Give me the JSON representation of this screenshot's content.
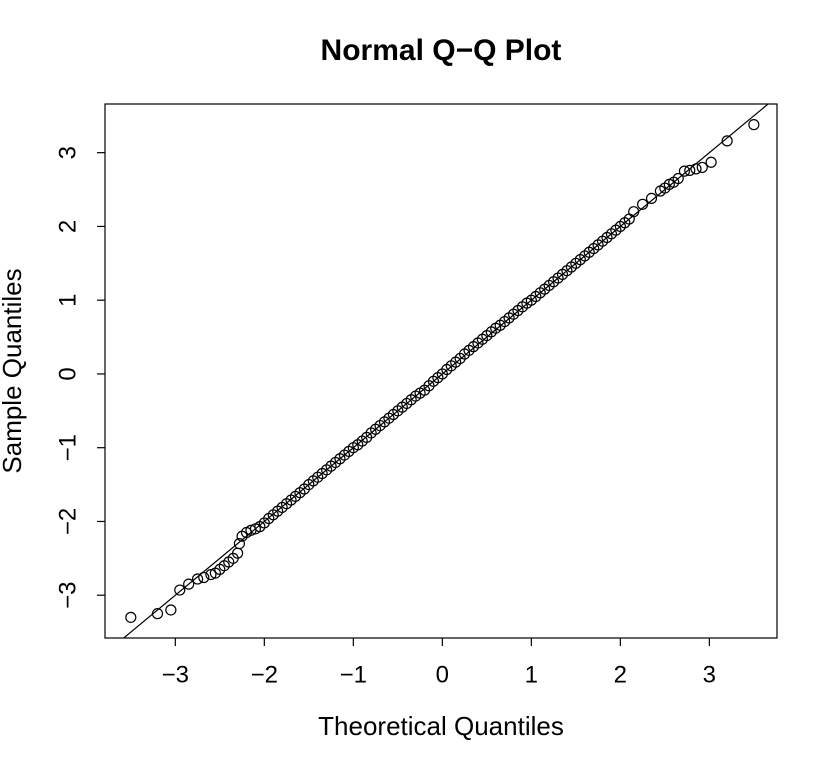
{
  "chart_data": {
    "type": "scatter",
    "title": "Normal Q−Q Plot",
    "x_label": "Theoretical Quantiles",
    "y_label": "Sample Quantiles",
    "xlim": [
      -3.79,
      3.76
    ],
    "ylim": [
      -3.58,
      3.66
    ],
    "xticks": [
      {
        "value": -3,
        "label": "−3"
      },
      {
        "value": -2,
        "label": "−2"
      },
      {
        "value": -1,
        "label": "−1"
      },
      0,
      1,
      2,
      3
    ],
    "yticks": [
      {
        "value": -3,
        "label": "−3"
      },
      {
        "value": -2,
        "label": "−2"
      },
      {
        "value": -1,
        "label": "−1"
      },
      0,
      1,
      2,
      3
    ],
    "color": "#000000",
    "qqline": {
      "intercept": 0,
      "slope": 1
    },
    "x": [
      -3.5,
      -3.2,
      -3.05,
      -2.95,
      -2.85,
      -2.75,
      -2.68,
      -2.6,
      -2.55,
      -2.5,
      -2.45,
      -2.4,
      -2.35,
      -2.3,
      -2.28,
      -2.25,
      -2.2,
      -2.15,
      -2.1,
      -2.05,
      -2,
      -1.95,
      -1.9,
      -1.85,
      -1.8,
      -1.75,
      -1.7,
      -1.65,
      -1.6,
      -1.55,
      -1.5,
      -1.45,
      -1.4,
      -1.35,
      -1.3,
      -1.25,
      -1.2,
      -1.15,
      -1.1,
      -1.05,
      -1,
      -0.95,
      -0.9,
      -0.85,
      -0.8,
      -0.75,
      -0.7,
      -0.65,
      -0.6,
      -0.55,
      -0.5,
      -0.45,
      -0.4,
      -0.35,
      -0.3,
      -0.25,
      -0.2,
      -0.15,
      -0.1,
      -0.05,
      0,
      0.05,
      0.1,
      0.15,
      0.2,
      0.25,
      0.3,
      0.35,
      0.4,
      0.45,
      0.5,
      0.55,
      0.6,
      0.65,
      0.7,
      0.75,
      0.8,
      0.85,
      0.9,
      0.95,
      1,
      1.05,
      1.1,
      1.15,
      1.2,
      1.25,
      1.3,
      1.35,
      1.4,
      1.45,
      1.5,
      1.55,
      1.6,
      1.65,
      1.7,
      1.75,
      1.8,
      1.85,
      1.9,
      1.95,
      2,
      2.05,
      2.1,
      2.15,
      2.25,
      2.35,
      2.45,
      2.5,
      2.55,
      2.6,
      2.65,
      2.72,
      2.78,
      2.85,
      2.92,
      3.02,
      3.2,
      3.5
    ],
    "values": [
      -3.3,
      -3.25,
      -3.2,
      -2.93,
      -2.85,
      -2.78,
      -2.76,
      -2.72,
      -2.7,
      -2.65,
      -2.6,
      -2.55,
      -2.5,
      -2.43,
      -2.3,
      -2.2,
      -2.15,
      -2.12,
      -2.1,
      -2.07,
      -2.02,
      -1.96,
      -1.91,
      -1.86,
      -1.81,
      -1.76,
      -1.71,
      -1.66,
      -1.61,
      -1.56,
      -1.5,
      -1.45,
      -1.4,
      -1.35,
      -1.3,
      -1.25,
      -1.2,
      -1.15,
      -1.1,
      -1.05,
      -1,
      -0.96,
      -0.91,
      -0.86,
      -0.8,
      -0.75,
      -0.7,
      -0.65,
      -0.6,
      -0.55,
      -0.5,
      -0.45,
      -0.4,
      -0.35,
      -0.3,
      -0.26,
      -0.22,
      -0.16,
      -0.1,
      -0.05,
      0,
      0.06,
      0.11,
      0.16,
      0.21,
      0.27,
      0.32,
      0.37,
      0.42,
      0.47,
      0.52,
      0.57,
      0.62,
      0.66,
      0.71,
      0.76,
      0.81,
      0.86,
      0.91,
      0.96,
      1,
      1.05,
      1.1,
      1.15,
      1.2,
      1.25,
      1.3,
      1.35,
      1.4,
      1.45,
      1.5,
      1.55,
      1.6,
      1.65,
      1.7,
      1.75,
      1.8,
      1.85,
      1.9,
      1.95,
      2,
      2.05,
      2.1,
      2.2,
      2.3,
      2.38,
      2.48,
      2.52,
      2.57,
      2.6,
      2.65,
      2.75,
      2.76,
      2.78,
      2.8,
      2.87,
      3.16,
      3.38
    ]
  }
}
